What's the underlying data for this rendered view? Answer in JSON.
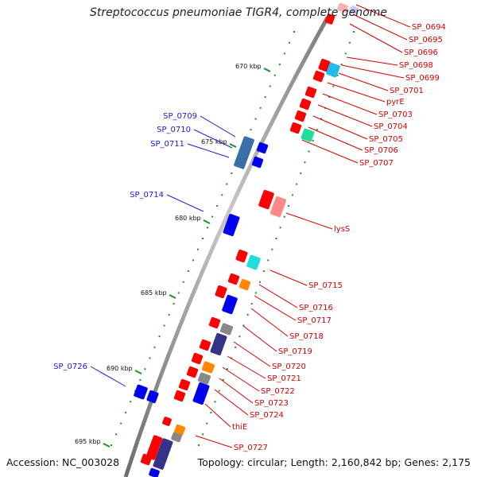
{
  "title": "Streptococcus pneumoniae TIGR4, complete genome",
  "accession": "Accession: NC_003028",
  "topology": "Topology: circular; Length: 2,160,842 bp; Genes: 2,175",
  "colors": {
    "forward_label": "#1a1adc",
    "reverse_label": "#d40000",
    "backbone": "#8c8c8c",
    "tick": "#1f8f1f"
  },
  "kbp_ticks": [
    "670 kbp",
    "675 kbp",
    "680 kbp",
    "685 kbp",
    "690 kbp",
    "695 kbp"
  ],
  "forward_labels": [
    "SP_0709",
    "SP_0710",
    "SP_0711",
    "SP_0714",
    "SP_0726"
  ],
  "reverse_labels": [
    "SP_0694",
    "SP_0695",
    "SP_0696",
    "SP_0698",
    "SP_0699",
    "SP_0701",
    "pyrE",
    "SP_0703",
    "SP_0704",
    "SP_0705",
    "SP_0706",
    "SP_0707",
    "lysS",
    "SP_0715",
    "SP_0716",
    "SP_0717",
    "SP_0718",
    "SP_0719",
    "SP_0720",
    "SP_0721",
    "SP_0722",
    "SP_0723",
    "SP_0724",
    "thiE",
    "SP_0727"
  ]
}
